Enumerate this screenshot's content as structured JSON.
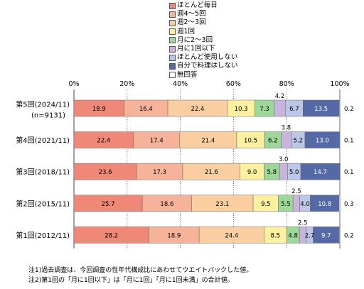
{
  "chart_data": {
    "type": "bar",
    "orientation": "horizontal",
    "stacked": true,
    "xlim": [
      0,
      100
    ],
    "x_ticks": [
      "0%",
      "20%",
      "40%",
      "60%",
      "80%",
      "100%"
    ],
    "grid": true,
    "legend_position": "top",
    "categories": [
      {
        "label": "第5回(2024/11)",
        "sublabel": "(n=9131)"
      },
      {
        "label": "第4回(2021/11)",
        "sublabel": ""
      },
      {
        "label": "第3回(2018/11)",
        "sublabel": ""
      },
      {
        "label": "第2回(2015/11)",
        "sublabel": ""
      },
      {
        "label": "第1回(2012/11)",
        "sublabel": ""
      }
    ],
    "series": [
      {
        "name": "ほとんど毎日",
        "color": "#f08878",
        "values": [
          18.9,
          22.4,
          23.6,
          25.7,
          28.2
        ]
      },
      {
        "name": "週4～5回",
        "color": "#f7b29a",
        "values": [
          16.4,
          17.4,
          17.3,
          18.6,
          18.9
        ]
      },
      {
        "name": "週2～3回",
        "color": "#fbcea2",
        "values": [
          22.4,
          21.4,
          21.6,
          23.1,
          24.4
        ]
      },
      {
        "name": "週1回",
        "color": "#fdf0a0",
        "values": [
          10.3,
          10.5,
          9.0,
          9.5,
          8.5
        ]
      },
      {
        "name": "月に2～3回",
        "color": "#9ed79a",
        "values": [
          7.3,
          6.2,
          5.8,
          5.5,
          4.8
        ]
      },
      {
        "name": "月に1回以下",
        "color": "#c9b5dc",
        "values": [
          4.2,
          3.8,
          3.0,
          2.5,
          2.5
        ]
      },
      {
        "name": "ほとんど使用しない",
        "color": "#bcc6e6",
        "values": [
          6.7,
          5.2,
          5.0,
          4.0,
          2.7
        ]
      },
      {
        "name": "自分で料理はしない",
        "color": "#5569a7",
        "values": [
          13.5,
          13.0,
          14.7,
          10.8,
          9.7
        ]
      },
      {
        "name": "無回答",
        "color": "#ffffff",
        "values": [
          0.2,
          0.1,
          0.1,
          0.3,
          0.2
        ]
      }
    ],
    "notes": [
      "注1)過去調査は、今回調査の性年代構成比にあわせてウエイトバックした値。",
      "注2)第1回の「月に1回以下」は「月に1回」「月に1回未満」の合計値。"
    ]
  }
}
